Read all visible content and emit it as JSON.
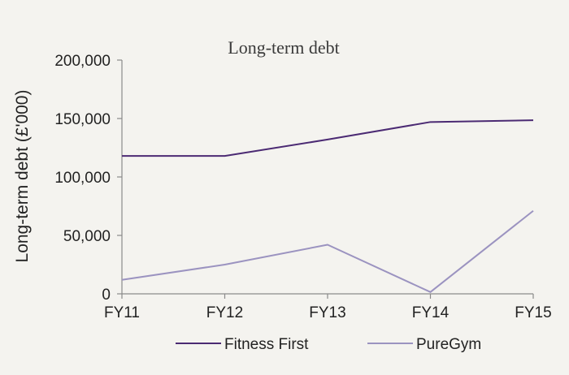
{
  "chart_data": {
    "type": "line",
    "title": "Long-term debt",
    "xlabel": "",
    "ylabel": "Long-term debt (£'000)",
    "categories": [
      "FY11",
      "FY12",
      "FY13",
      "FY14",
      "FY15"
    ],
    "ylim": [
      0,
      200000
    ],
    "yticks": [
      0,
      50000,
      100000,
      150000,
      200000
    ],
    "ytick_labels": [
      "0",
      "50,000",
      "100,000",
      "150,000",
      "200,000"
    ],
    "grid": false,
    "legend_position": "bottom",
    "series": [
      {
        "name": "Fitness First",
        "color": "#4b2a73",
        "values": [
          118000,
          118000,
          132000,
          147000,
          148500
        ]
      },
      {
        "name": "PureGym",
        "color": "#9b93c0",
        "values": [
          12000,
          25000,
          42000,
          1500,
          71000
        ]
      }
    ]
  }
}
